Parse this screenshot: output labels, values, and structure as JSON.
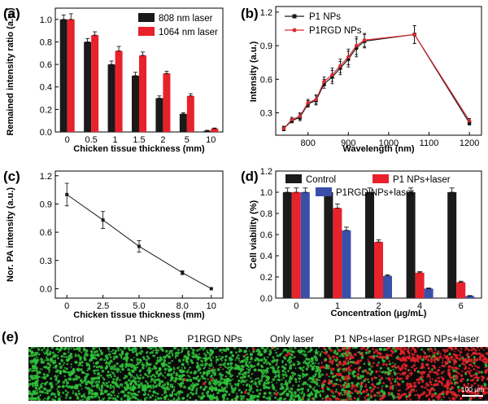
{
  "panel_labels": [
    "(a)",
    "(b)",
    "(c)",
    "(d)",
    "(e)"
  ],
  "chart_data": [
    {
      "panel": "(a)",
      "type": "bar",
      "xlabel": "Chicken tissue thickness (mm)",
      "ylabel": "Remained intensity ratio (a.u.)",
      "categories": [
        "0",
        "0.5",
        "1",
        "1.5",
        "2",
        "5",
        "10"
      ],
      "ylim": [
        0,
        1.1
      ],
      "yticks": [
        "0.0",
        "0.2",
        "0.4",
        "0.6",
        "0.8",
        "1.0"
      ],
      "legend": "top-right",
      "series": [
        {
          "name": "808 nm laser",
          "color": "#1a1a1a",
          "values": [
            1.0,
            0.8,
            0.6,
            0.5,
            0.3,
            0.16,
            0.01
          ],
          "errors": [
            0.04,
            0.03,
            0.03,
            0.03,
            0.02,
            0.01,
            0.005
          ]
        },
        {
          "name": "1064 nm laser",
          "color": "#e8222a",
          "values": [
            1.0,
            0.86,
            0.72,
            0.68,
            0.52,
            0.32,
            0.03
          ],
          "errors": [
            0.05,
            0.03,
            0.04,
            0.03,
            0.02,
            0.02,
            0.005
          ]
        }
      ]
    },
    {
      "panel": "(b)",
      "type": "line",
      "xlabel": "Wavelength (nm)",
      "ylabel": "Intensity (a.u.)",
      "xlim": [
        720,
        1230
      ],
      "ylim": [
        0.1,
        1.25
      ],
      "xticks": [
        "800",
        "900",
        "1000",
        "1100",
        "1200"
      ],
      "yticks": [
        "0.3",
        "0.6",
        "0.9",
        "1.2"
      ],
      "legend": "top-left",
      "series": [
        {
          "name": "P1 NPs",
          "color": "#1a1a1a",
          "marker": "square",
          "x": [
            740,
            760,
            780,
            800,
            820,
            840,
            860,
            880,
            900,
            920,
            940,
            1064,
            1200
          ],
          "y": [
            0.16,
            0.23,
            0.26,
            0.38,
            0.41,
            0.56,
            0.62,
            0.7,
            0.78,
            0.88,
            0.94,
            1.0,
            0.21
          ],
          "errors": [
            0.02,
            0.02,
            0.03,
            0.03,
            0.04,
            0.04,
            0.06,
            0.06,
            0.07,
            0.08,
            0.06,
            0.08,
            0.02
          ]
        },
        {
          "name": "P1RGD NPs",
          "color": "#d9292f",
          "marker": "circle",
          "x": [
            740,
            760,
            780,
            800,
            820,
            840,
            860,
            880,
            900,
            920,
            940,
            1064,
            1200
          ],
          "y": [
            0.16,
            0.24,
            0.27,
            0.39,
            0.42,
            0.58,
            0.64,
            0.72,
            0.8,
            0.9,
            0.95,
            1.0,
            0.23
          ],
          "errors": [
            0.02,
            0.02,
            0.03,
            0.03,
            0.04,
            0.04,
            0.06,
            0.06,
            0.07,
            0.08,
            0.06,
            0.08,
            0.02
          ]
        }
      ]
    },
    {
      "panel": "(c)",
      "type": "line",
      "xlabel": "Chicken tissue thickness (mm)",
      "ylabel": "Nor. PA intensity (a.u.)",
      "xlim": [
        -0.8,
        10.8
      ],
      "ylim": [
        -0.1,
        1.25
      ],
      "xticks": [
        "0",
        "2.5",
        "5.0",
        "8.0",
        "10"
      ],
      "yticks": [
        "0.0",
        "0.3",
        "0.6",
        "0.9",
        "1.2"
      ],
      "series": [
        {
          "name": "",
          "color": "#1a1a1a",
          "marker": "square",
          "x": [
            0,
            2.5,
            5.0,
            8.0,
            10
          ],
          "y": [
            1.0,
            0.73,
            0.45,
            0.17,
            0.0
          ],
          "errors": [
            0.12,
            0.09,
            0.06,
            0.02,
            0.0
          ]
        }
      ]
    },
    {
      "panel": "(d)",
      "type": "bar",
      "xlabel": "Concentration (μg/mL)",
      "ylabel": "Cell viability (%)",
      "categories": [
        "0",
        "1",
        "2",
        "4",
        "6"
      ],
      "ylim": [
        0,
        1.2
      ],
      "yticks": [
        "0.0",
        "0.2",
        "0.4",
        "0.6",
        "0.8",
        "1.0",
        "1.2"
      ],
      "legend": "top",
      "series": [
        {
          "name": "Control",
          "color": "#1a1a1a",
          "values": [
            1.0,
            1.0,
            1.0,
            1.0,
            1.0
          ],
          "errors": [
            0.04,
            0.04,
            0.04,
            0.04,
            0.04
          ]
        },
        {
          "name": "P1 NPs+laser",
          "color": "#e8222a",
          "values": [
            1.0,
            0.85,
            0.53,
            0.24,
            0.15
          ],
          "errors": [
            0.04,
            0.04,
            0.02,
            0.01,
            0.01
          ]
        },
        {
          "name": "P1RGD NPs+laser",
          "color": "#3a4fa8",
          "values": [
            1.0,
            0.64,
            0.21,
            0.09,
            0.02
          ],
          "errors": [
            0.04,
            0.03,
            0.01,
            0.005,
            0.004
          ]
        }
      ]
    }
  ],
  "microscopy": {
    "labels": [
      "Control",
      "P1 NPs",
      "P1RGD NPs",
      "Only laser",
      "P1 NPs+laser",
      "P1RGD NPs+laser"
    ],
    "red_fraction": [
      0.0,
      0.0,
      0.02,
      0.03,
      0.55,
      0.88
    ],
    "scale_bar": "100 μm",
    "colors": {
      "live": "#2fc43a",
      "dead": "#e8232a",
      "background": "#0a0a0a"
    }
  }
}
